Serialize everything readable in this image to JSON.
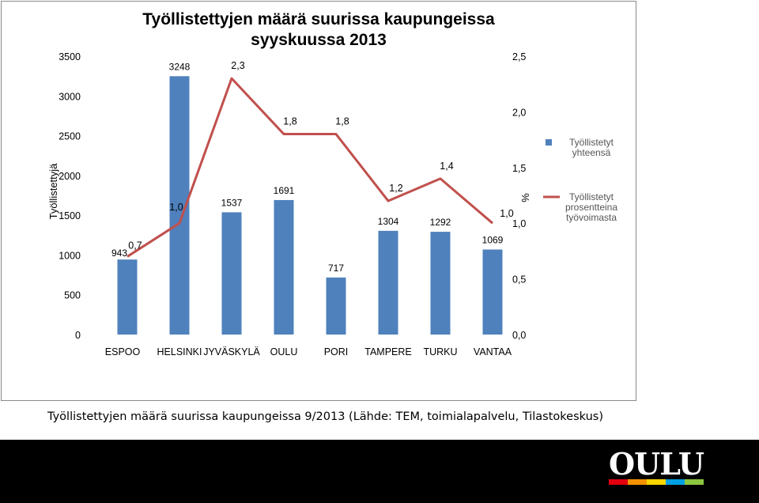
{
  "chart_data": {
    "type": "bar",
    "title": "Työllistettyjen määrä suurissa kaupungeissa",
    "subtitle": "syyskuussa 2013",
    "categories": [
      "ESPOO",
      "HELSINKI",
      "JYVÄSKYLÄ",
      "OULU",
      "PORI",
      "TAMPERE",
      "TURKU",
      "VANTAA"
    ],
    "series": [
      {
        "name": "Työllistetyt yhteensä",
        "type": "bar",
        "axis": "left",
        "values": [
          943,
          3248,
          1537,
          1691,
          717,
          1304,
          1292,
          1069
        ],
        "labels": [
          "943",
          "3248",
          "1537",
          "1691",
          "717",
          "1304",
          "1292",
          "1069"
        ],
        "color": "#4F81BD"
      },
      {
        "name": "Työllistetyt prosentteina työvoimasta",
        "type": "line",
        "axis": "right",
        "values": [
          0.7,
          1.0,
          2.3,
          1.8,
          1.8,
          1.2,
          1.4,
          1.0
        ],
        "labels": [
          "0,7",
          "1,0",
          "2,3",
          "1,8",
          "1,8",
          "1,2",
          "1,4",
          "1,0"
        ],
        "color": "#C0504D"
      }
    ],
    "ylabel": "Työllistettyjä",
    "y2label": "%",
    "ylim": [
      0,
      3500
    ],
    "y2lim": [
      0,
      2.5
    ],
    "yticks": [
      "0",
      "500",
      "1000",
      "1500",
      "2000",
      "2500",
      "3000",
      "3500"
    ],
    "y2ticks": [
      "0,0",
      "0,5",
      "1,0",
      "1,5",
      "2,0",
      "2,5"
    ],
    "grid": false,
    "legend": "right",
    "legend_entries": [
      {
        "lines": [
          "Työllistetyt",
          "yhteensä"
        ]
      },
      {
        "lines": [
          "Työllistetyt",
          "prosentteina",
          "työvoimasta"
        ]
      }
    ]
  },
  "caption": "Työllistettyjen määrä suurissa kaupungeissa 9/2013 (Lähde: TEM, toimialapalvelu, Tilastokeskus)",
  "logo": {
    "text": "OULU",
    "stripe_colors": [
      "#E3000F",
      "#F39200",
      "#FFD500",
      "#009FE3",
      "#8DC63F"
    ]
  }
}
